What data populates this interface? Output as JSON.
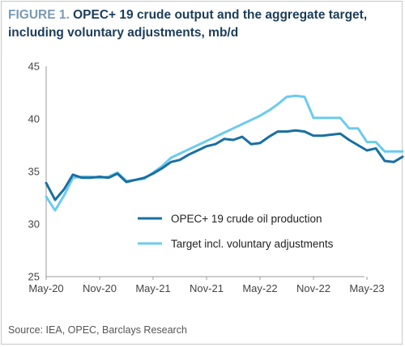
{
  "title": {
    "figure_label": "FIGURE 1.",
    "text": "OPEC+ 19 crude output and the aggregate target, including voluntary adjustments, mb/d"
  },
  "source": "Source: IEA, OPEC, Barclays Research",
  "colors": {
    "production": "#1a6fa1",
    "target": "#6ccbef",
    "axis": "#999999"
  },
  "chart_data": {
    "type": "line",
    "title": "FIGURE 1. OPEC+ 19 crude output and the aggregate target, including voluntary adjustments, mb/d",
    "xlabel": "",
    "ylabel": "",
    "ylim": [
      25,
      45
    ],
    "yticks": [
      25,
      30,
      35,
      40,
      45
    ],
    "xtick_labels": [
      "May-20",
      "Nov-20",
      "May-21",
      "Nov-21",
      "May-22",
      "Nov-22",
      "May-23"
    ],
    "x": [
      "May-20",
      "Jun-20",
      "Jul-20",
      "Aug-20",
      "Sep-20",
      "Oct-20",
      "Nov-20",
      "Dec-20",
      "Jan-21",
      "Feb-21",
      "Mar-21",
      "Apr-21",
      "May-21",
      "Jun-21",
      "Jul-21",
      "Aug-21",
      "Sep-21",
      "Oct-21",
      "Nov-21",
      "Dec-21",
      "Jan-22",
      "Feb-22",
      "Mar-22",
      "Apr-22",
      "May-22",
      "Jun-22",
      "Jul-22",
      "Aug-22",
      "Sep-22",
      "Oct-22",
      "Nov-22",
      "Dec-22",
      "Jan-23",
      "Feb-23",
      "Mar-23",
      "Apr-23",
      "May-23",
      "Jun-23",
      "Jul-23",
      "Aug-23",
      "Sep-23"
    ],
    "series": [
      {
        "name": "OPEC+ 19 crude oil production",
        "values": [
          33.9,
          32.3,
          33.3,
          34.7,
          34.4,
          34.4,
          34.5,
          34.4,
          34.8,
          34.0,
          34.2,
          34.4,
          34.8,
          35.3,
          35.9,
          36.1,
          36.6,
          37.0,
          37.4,
          37.6,
          38.1,
          38.0,
          38.3,
          37.6,
          37.7,
          38.3,
          38.8,
          38.8,
          38.9,
          38.8,
          38.4,
          38.4,
          38.5,
          38.6,
          38.0,
          37.5,
          37.0,
          37.2,
          36.0,
          35.9,
          36.4
        ]
      },
      {
        "name": "Target incl. voluntary adjustments",
        "values": [
          32.6,
          31.3,
          32.7,
          34.4,
          34.5,
          34.5,
          34.4,
          34.5,
          34.9,
          34.1,
          34.2,
          34.3,
          34.9,
          35.5,
          36.3,
          36.7,
          37.1,
          37.5,
          37.9,
          38.3,
          38.7,
          39.1,
          39.5,
          39.9,
          40.3,
          40.8,
          41.4,
          42.1,
          42.2,
          42.1,
          40.1,
          40.1,
          40.1,
          40.1,
          39.1,
          39.1,
          37.8,
          37.8,
          36.9,
          36.9,
          36.9
        ]
      }
    ],
    "grid": false,
    "legend_position": "bottom-right"
  }
}
